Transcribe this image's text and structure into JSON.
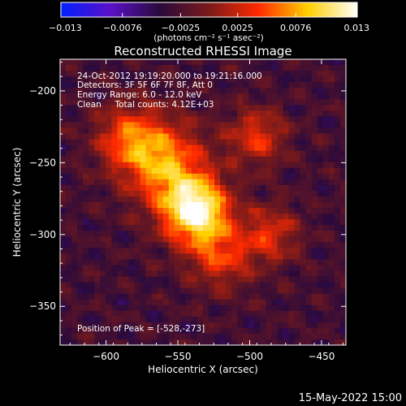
{
  "chart_data": {
    "type": "heatmap",
    "title": "Reconstructed RHESSI Image",
    "xlabel": "Heliocentric X (arcsec)",
    "ylabel": "Heliocentric Y (arcsec)",
    "xlim": [
      -632,
      -433
    ],
    "ylim": [
      -377,
      -178
    ],
    "x_ticks": [
      -600,
      -550,
      -500,
      -450
    ],
    "x_tick_labels": [
      "−600",
      "−550",
      "−500",
      "−450"
    ],
    "y_ticks": [
      -200,
      -250,
      -300,
      -350
    ],
    "y_tick_labels": [
      "−200",
      "−250",
      "−300",
      "−350"
    ],
    "colorbar": {
      "range": [
        -0.013,
        0.013
      ],
      "ticks": [
        -0.013,
        -0.0076,
        -0.0025,
        0.0025,
        0.0076,
        0.013
      ],
      "tick_labels": [
        "−0.013",
        "−0.0076",
        "−0.0025",
        "0.0025",
        "0.0076",
        "0.013"
      ],
      "units": "(photons cm⁻² s⁻¹ asec⁻²)",
      "colormap_stops": [
        "#0020ff",
        "#5a10c8",
        "#2a0a3c",
        "#7a1a1a",
        "#ff2a00",
        "#ffd000",
        "#ffffff"
      ]
    },
    "annotations": [
      "24-Oct-2012 19:19:20.000 to 19:21:16.000",
      "Detectors: 3F 5F 6F 7F 8F, Att 0",
      "Energy Range: 6.0 - 12.0 keV",
      "Clean     Total counts: 4.12E+03"
    ],
    "peak_label": "Position of Peak = [-528,-273]",
    "peak": {
      "x": -528,
      "y": -273
    },
    "emission_sources": [
      {
        "x": -538,
        "y": -283,
        "peak_value": 0.0128
      },
      {
        "x": -560,
        "y": -250,
        "peak_value": 0.0068
      },
      {
        "x": -585,
        "y": -232,
        "peak_value": 0.004
      },
      {
        "x": -495,
        "y": -232,
        "peak_value": 0.0036
      },
      {
        "x": -485,
        "y": -300,
        "peak_value": 0.003
      },
      {
        "x": -520,
        "y": -315,
        "peak_value": 0.0036
      }
    ],
    "background_value": -0.003,
    "footer_date": "15-May-2022 15:00"
  }
}
